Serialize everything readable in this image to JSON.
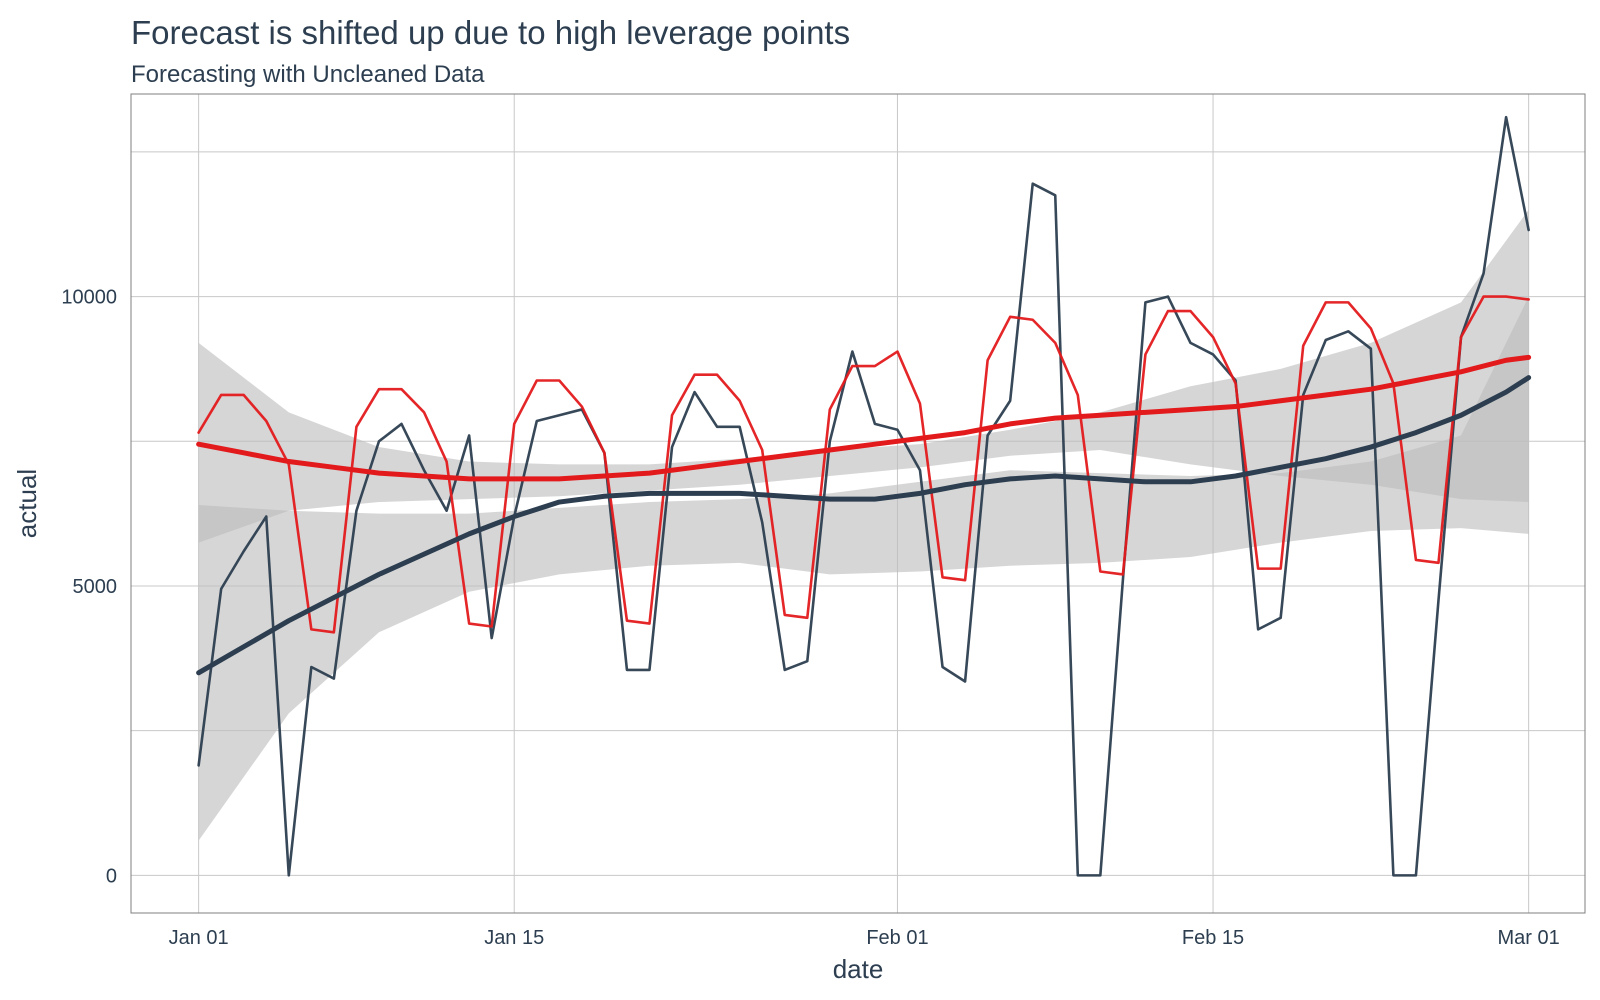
{
  "chart_data": {
    "type": "line",
    "title": "Forecast is shifted up due to high leverage points",
    "subtitle": "Forecasting with Uncleaned Data",
    "xlabel": "date",
    "ylabel": "actual",
    "x_ticks": [
      {
        "label": "Jan 01",
        "day": 0
      },
      {
        "label": "Jan 15",
        "day": 14
      },
      {
        "label": "Feb 01",
        "day": 31
      },
      {
        "label": "Feb 15",
        "day": 45
      },
      {
        "label": "Mar 01",
        "day": 59
      }
    ],
    "y_ticks": [
      0,
      5000,
      10000
    ],
    "xlim_days": [
      -3,
      61.5
    ],
    "ylim": [
      -650,
      13500
    ],
    "grid": true,
    "colors": {
      "actual": "#2c3e50",
      "cleaned": "#e31a1c",
      "band": "#bdbdbd",
      "grid": "#c8c8c8"
    },
    "series": [
      {
        "key": "actual",
        "values": [
          1900,
          4950,
          5600,
          6200,
          0,
          3600,
          3400,
          6300,
          7500,
          7800,
          7000,
          6300,
          7600,
          4100,
          6200,
          7850,
          7950,
          8050,
          7300,
          3550,
          3550,
          7400,
          8350,
          7750,
          7750,
          6100,
          3550,
          3700,
          7500,
          9050,
          7800,
          7700,
          7000,
          3600,
          3350,
          7600,
          8200,
          11950,
          11750,
          0,
          0,
          5100,
          9900,
          10000,
          9200,
          9000,
          8550,
          4250,
          4450,
          8300,
          9250,
          9400,
          9100,
          0,
          0,
          4750,
          9300,
          10400,
          13100,
          11150
        ]
      },
      {
        "key": "cleaned",
        "values": [
          7650,
          8300,
          8300,
          7850,
          7100,
          4250,
          4200,
          7750,
          8400,
          8400,
          8000,
          7150,
          4350,
          4300,
          7800,
          8550,
          8550,
          8100,
          7300,
          4400,
          4350,
          7950,
          8650,
          8650,
          8200,
          7350,
          4500,
          4450,
          8050,
          8800,
          8800,
          9050,
          8150,
          5150,
          5100,
          8900,
          9650,
          9600,
          9200,
          8300,
          5250,
          5200,
          9000,
          9750,
          9750,
          9300,
          8500,
          5300,
          5300,
          9150,
          9900,
          9900,
          9450,
          8500,
          5450,
          5400,
          9300,
          10000,
          10000,
          9950
        ]
      },
      {
        "key": "actual_smooth",
        "points": [
          [
            0,
            3500
          ],
          [
            2,
            3950
          ],
          [
            4,
            4400
          ],
          [
            6,
            4800
          ],
          [
            8,
            5200
          ],
          [
            10,
            5550
          ],
          [
            12,
            5900
          ],
          [
            14,
            6200
          ],
          [
            16,
            6450
          ],
          [
            18,
            6550
          ],
          [
            20,
            6600
          ],
          [
            22,
            6600
          ],
          [
            24,
            6600
          ],
          [
            26,
            6550
          ],
          [
            28,
            6500
          ],
          [
            30,
            6500
          ],
          [
            32,
            6600
          ],
          [
            34,
            6750
          ],
          [
            36,
            6850
          ],
          [
            38,
            6900
          ],
          [
            40,
            6850
          ],
          [
            42,
            6800
          ],
          [
            44,
            6800
          ],
          [
            46,
            6900
          ],
          [
            48,
            7050
          ],
          [
            50,
            7200
          ],
          [
            52,
            7400
          ],
          [
            54,
            7650
          ],
          [
            56,
            7950
          ],
          [
            58,
            8350
          ],
          [
            59,
            8600
          ]
        ]
      },
      {
        "key": "cleaned_smooth",
        "points": [
          [
            0,
            7450
          ],
          [
            2,
            7300
          ],
          [
            4,
            7150
          ],
          [
            6,
            7050
          ],
          [
            8,
            6950
          ],
          [
            10,
            6900
          ],
          [
            12,
            6850
          ],
          [
            14,
            6850
          ],
          [
            16,
            6850
          ],
          [
            18,
            6900
          ],
          [
            20,
            6950
          ],
          [
            22,
            7050
          ],
          [
            24,
            7150
          ],
          [
            26,
            7250
          ],
          [
            28,
            7350
          ],
          [
            30,
            7450
          ],
          [
            32,
            7550
          ],
          [
            34,
            7650
          ],
          [
            36,
            7800
          ],
          [
            38,
            7900
          ],
          [
            40,
            7950
          ],
          [
            42,
            8000
          ],
          [
            44,
            8050
          ],
          [
            46,
            8100
          ],
          [
            48,
            8200
          ],
          [
            50,
            8300
          ],
          [
            52,
            8400
          ],
          [
            54,
            8550
          ],
          [
            56,
            8700
          ],
          [
            58,
            8900
          ],
          [
            59,
            8950
          ]
        ]
      }
    ],
    "bands": [
      {
        "key": "actual_smooth_band",
        "points": [
          [
            0,
            600,
            6400
          ],
          [
            4,
            2800,
            6300
          ],
          [
            8,
            4200,
            6250
          ],
          [
            12,
            4900,
            6250
          ],
          [
            16,
            5200,
            6350
          ],
          [
            20,
            5350,
            6450
          ],
          [
            24,
            5400,
            6500
          ],
          [
            28,
            5200,
            6600
          ],
          [
            32,
            5250,
            6800
          ],
          [
            36,
            5350,
            7000
          ],
          [
            40,
            5400,
            6950
          ],
          [
            44,
            5500,
            6900
          ],
          [
            48,
            5750,
            6950
          ],
          [
            52,
            5950,
            7150
          ],
          [
            56,
            6000,
            7600
          ],
          [
            59,
            5900,
            10000
          ]
        ]
      },
      {
        "key": "cleaned_smooth_band",
        "points": [
          [
            0,
            9200,
            5750
          ],
          [
            4,
            8000,
            6300
          ],
          [
            8,
            7400,
            6450
          ],
          [
            12,
            7150,
            6500
          ],
          [
            16,
            7100,
            6550
          ],
          [
            20,
            7100,
            6650
          ],
          [
            24,
            7200,
            6750
          ],
          [
            28,
            7350,
            6900
          ],
          [
            32,
            7450,
            7050
          ],
          [
            36,
            7700,
            7250
          ],
          [
            40,
            8000,
            7350
          ],
          [
            44,
            8450,
            7100
          ],
          [
            48,
            8750,
            6900
          ],
          [
            52,
            9200,
            6750
          ],
          [
            56,
            9900,
            6500
          ],
          [
            59,
            11500,
            6450
          ]
        ]
      }
    ]
  }
}
